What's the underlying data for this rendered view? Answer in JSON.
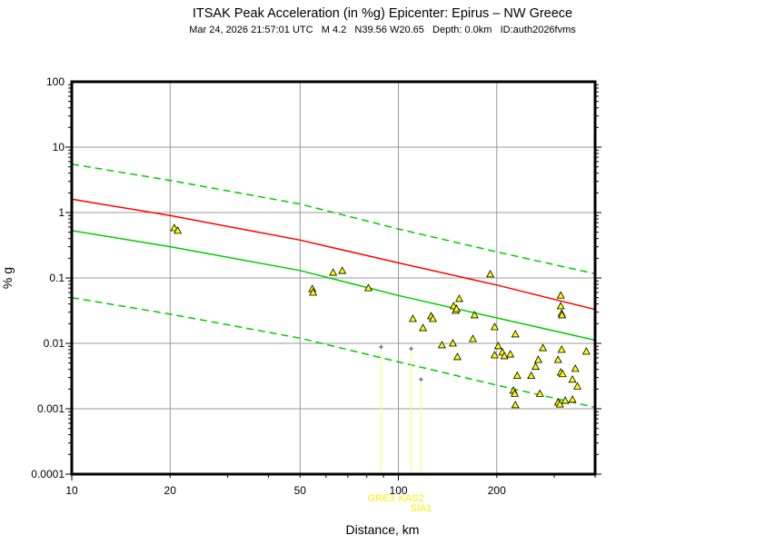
{
  "chart_data": {
    "type": "scatter",
    "title": "ITSAK Peak Acceleration (in %g) Epicenter: Epirus – NW Greece",
    "subtitle": "Mar 24, 2026 21:57:01 UTC   M 4.2   N39.56 W20.65   Depth: 0.0km   ID:auth2026fvms",
    "xlabel": "Distance, km",
    "ylabel": "% g",
    "x_scale": "log",
    "y_scale": "log",
    "xlim": [
      10,
      400
    ],
    "ylim": [
      0.0001,
      100
    ],
    "x_ticks": [
      {
        "v": 10,
        "label": "10"
      },
      {
        "v": 20,
        "label": "20"
      },
      {
        "v": 50,
        "label": "50"
      },
      {
        "v": 100,
        "label": "100"
      },
      {
        "v": 200,
        "label": "200"
      }
    ],
    "y_ticks": [
      {
        "v": 100,
        "label": "100"
      },
      {
        "v": 10,
        "label": "10"
      },
      {
        "v": 1,
        "label": "1"
      },
      {
        "v": 0.1,
        "label": "0.1"
      },
      {
        "v": 0.01,
        "label": "0.01"
      },
      {
        "v": 0.001,
        "label": "0.001"
      },
      {
        "v": 0.0001,
        "label": "0.0001"
      }
    ],
    "grid": true,
    "lines": [
      {
        "style": "solid",
        "color": "#ff0000",
        "x": [
          10,
          20,
          50,
          100,
          200,
          400
        ],
        "y": [
          1.6,
          0.9,
          0.38,
          0.17,
          0.078,
          0.033
        ]
      },
      {
        "style": "solid",
        "color": "#00cc00",
        "x": [
          10,
          20,
          50,
          100,
          200,
          400
        ],
        "y": [
          0.53,
          0.3,
          0.13,
          0.054,
          0.0245,
          0.0112
        ]
      },
      {
        "style": "dashed",
        "color": "#00cc00",
        "x": [
          10,
          20,
          50,
          100,
          200,
          400
        ],
        "y": [
          5.5,
          3.1,
          1.35,
          0.56,
          0.25,
          0.116
        ]
      },
      {
        "style": "dashed",
        "color": "#00cc00",
        "x": [
          10,
          20,
          50,
          100,
          200,
          400
        ],
        "y": [
          0.05,
          0.028,
          0.012,
          0.0052,
          0.0023,
          0.00105
        ]
      }
    ],
    "points": {
      "marker": "triangle",
      "color": "#ffff00",
      "data": [
        [
          20.6,
          0.58
        ],
        [
          21.1,
          0.53
        ],
        [
          54.5,
          0.068
        ],
        [
          54.8,
          0.06
        ],
        [
          63.1,
          0.121
        ],
        [
          67.3,
          0.129
        ],
        [
          80.9,
          0.07
        ],
        [
          110.7,
          0.0237
        ],
        [
          118.9,
          0.0172
        ],
        [
          125.9,
          0.0261
        ],
        [
          127.5,
          0.0237
        ],
        [
          135.9,
          0.0094
        ],
        [
          146.8,
          0.01
        ],
        [
          147.6,
          0.0371
        ],
        [
          149.6,
          0.0316
        ],
        [
          151.6,
          0.0062
        ],
        [
          153.5,
          0.048
        ],
        [
          150.6,
          0.0337
        ],
        [
          171,
          0.027
        ],
        [
          169,
          0.0117
        ],
        [
          191,
          0.114
        ],
        [
          197,
          0.0178
        ],
        [
          197,
          0.0066
        ],
        [
          202,
          0.0091
        ],
        [
          208,
          0.0073
        ],
        [
          211,
          0.0064
        ],
        [
          220,
          0.0068
        ],
        [
          228,
          0.0138
        ],
        [
          231,
          0.0032
        ],
        [
          225,
          0.0019
        ],
        [
          227,
          0.0017
        ],
        [
          228,
          0.00114
        ],
        [
          255,
          0.0032
        ],
        [
          263,
          0.0044
        ],
        [
          268,
          0.0056
        ],
        [
          277,
          0.0085
        ],
        [
          271,
          0.0017
        ],
        [
          308,
          0.0056
        ],
        [
          314,
          0.054
        ],
        [
          314,
          0.0371
        ],
        [
          316,
          0.0287
        ],
        [
          317,
          0.027
        ],
        [
          316,
          0.008
        ],
        [
          314,
          0.0036
        ],
        [
          318,
          0.0034
        ],
        [
          308,
          0.00125
        ],
        [
          312,
          0.00117
        ],
        [
          324,
          0.00133
        ],
        [
          341,
          0.00138
        ],
        [
          341,
          0.0028
        ],
        [
          348,
          0.0041
        ],
        [
          353,
          0.0022
        ],
        [
          376,
          0.0075
        ]
      ]
    },
    "flagged_stations": [
      {
        "name": "GRE3",
        "x": 88.5,
        "y": 0.0088
      },
      {
        "name": "KAS2",
        "x": 109.4,
        "y": 0.0083
      },
      {
        "name": "SIA1",
        "x": 117.2,
        "y": 0.0028
      }
    ]
  }
}
